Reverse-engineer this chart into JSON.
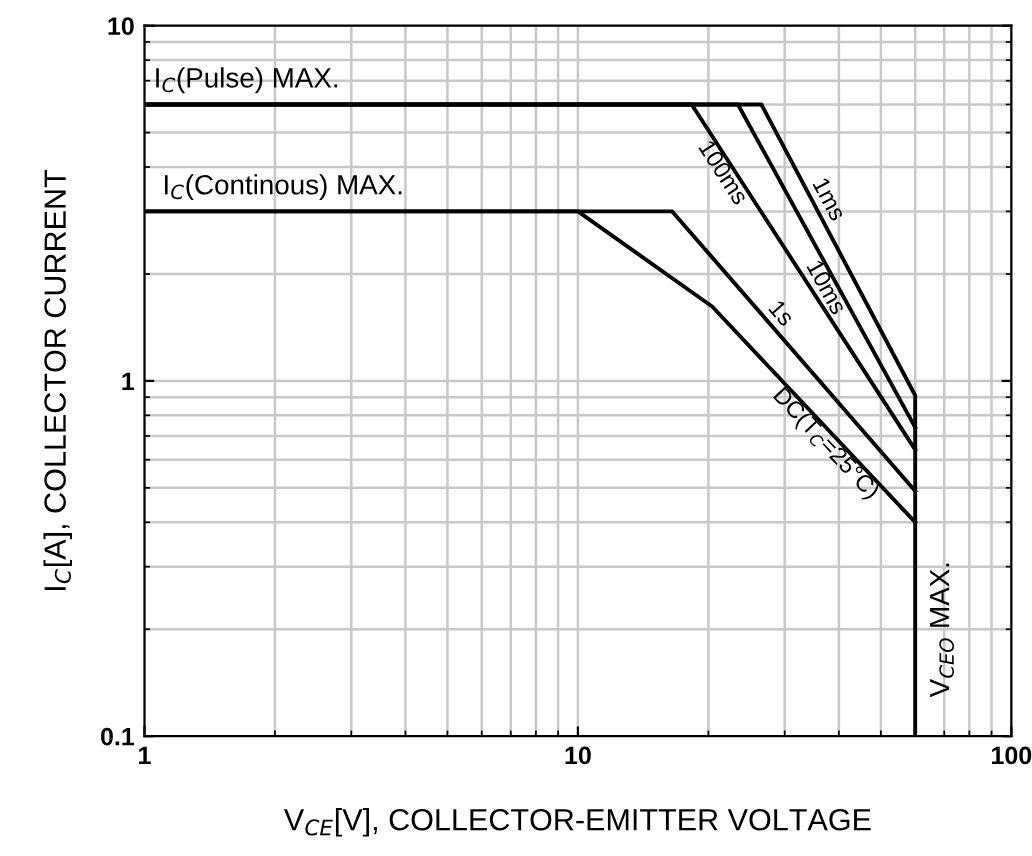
{
  "chart_data": {
    "type": "line",
    "xlabel": "V$_{CE}$[V], COLLECTOR-EMITTER VOLTAGE",
    "ylabel": "I$_{C}$[A], COLLECTOR CURRENT",
    "log": "xy",
    "xlim": [
      1,
      100
    ],
    "ylim": [
      0.1,
      10
    ],
    "xticks": [
      1,
      10,
      100
    ],
    "yticks": [
      0.1,
      1,
      10
    ],
    "grid": true,
    "legend": false,
    "marker": "none",
    "line_style": "solid",
    "series": [
      {
        "name": "1ms",
        "color": "#000000",
        "x": [
          1,
          26.5,
          60,
          60
        ],
        "values": [
          6,
          6,
          0.91,
          0.1
        ]
      },
      {
        "name": "10ms",
        "color": "#000000",
        "x": [
          1,
          23.4,
          60
        ],
        "values": [
          6,
          6,
          0.74
        ]
      },
      {
        "name": "100ms",
        "color": "#000000",
        "x": [
          1,
          18.3,
          60
        ],
        "values": [
          6,
          6,
          0.64
        ]
      },
      {
        "name": "1s",
        "color": "#000000",
        "x": [
          1,
          16.5,
          60
        ],
        "values": [
          3,
          3,
          0.49
        ]
      },
      {
        "name": "DC(T$_{C}$=25°C)",
        "color": "#000000",
        "x": [
          1,
          10,
          20.4,
          60
        ],
        "values": [
          3,
          3,
          1.62,
          0.4
        ]
      }
    ],
    "annotations": [
      {
        "text": "I$_{C}$(Pulse) MAX.",
        "x": 1.05,
        "y": 6
      },
      {
        "text": "I$_{C}$(Continous) MAX.",
        "x": 1.1,
        "y": 3
      },
      {
        "text": "V$_{CEO}$ MAX.",
        "x": 60,
        "y": 0.2
      }
    ]
  }
}
